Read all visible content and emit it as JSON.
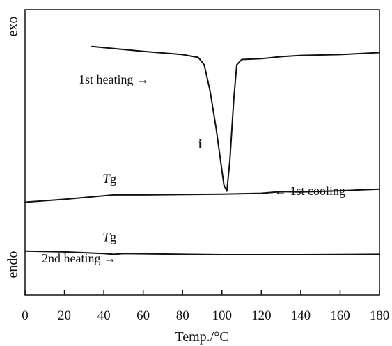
{
  "chart_data": {
    "type": "line",
    "xlabel": "Temp./°C",
    "ylabel_top": "exo",
    "ylabel_bottom": "endo",
    "xlim": [
      0,
      180
    ],
    "x_ticks": [
      0,
      20,
      40,
      60,
      80,
      100,
      120,
      140,
      160,
      180
    ],
    "grid": false,
    "series": [
      {
        "name": "1st heating →",
        "points": [
          [
            34,
            6.1
          ],
          [
            60,
            5.98
          ],
          [
            80,
            5.9
          ],
          [
            88,
            5.83
          ],
          [
            91,
            5.65
          ],
          [
            94,
            5.0
          ],
          [
            97,
            4.1
          ],
          [
            99,
            3.4
          ],
          [
            101,
            2.7
          ],
          [
            102.5,
            2.55
          ],
          [
            104,
            3.3
          ],
          [
            106,
            4.8
          ],
          [
            107.5,
            5.65
          ],
          [
            110,
            5.78
          ],
          [
            120,
            5.8
          ],
          [
            130,
            5.85
          ],
          [
            140,
            5.88
          ],
          [
            160,
            5.9
          ],
          [
            180,
            5.95
          ]
        ]
      },
      {
        "name": "← 1st cooling",
        "points": [
          [
            0,
            2.28
          ],
          [
            20,
            2.35
          ],
          [
            45,
            2.46
          ],
          [
            60,
            2.46
          ],
          [
            100,
            2.48
          ],
          [
            120,
            2.5
          ],
          [
            130,
            2.54
          ],
          [
            140,
            2.53
          ],
          [
            160,
            2.56
          ],
          [
            180,
            2.6
          ]
        ]
      },
      {
        "name": "2nd heating →",
        "points": [
          [
            0,
            1.08
          ],
          [
            20,
            1.06
          ],
          [
            40,
            1.02
          ],
          [
            45,
            1.0
          ],
          [
            50,
            1.02
          ],
          [
            80,
            1.0
          ],
          [
            100,
            0.99
          ],
          [
            140,
            0.99
          ],
          [
            180,
            1.0
          ]
        ]
      }
    ],
    "annotations": {
      "tg1": {
        "italic": "T",
        "rest": "g",
        "x": 45,
        "y": 2.75
      },
      "tg2": {
        "italic": "T",
        "rest": "g",
        "x": 45,
        "y": 1.32
      },
      "peak_marker": {
        "text": "i",
        "x": 89,
        "y": 3.6
      }
    },
    "ylim": [
      0,
      7
    ]
  }
}
